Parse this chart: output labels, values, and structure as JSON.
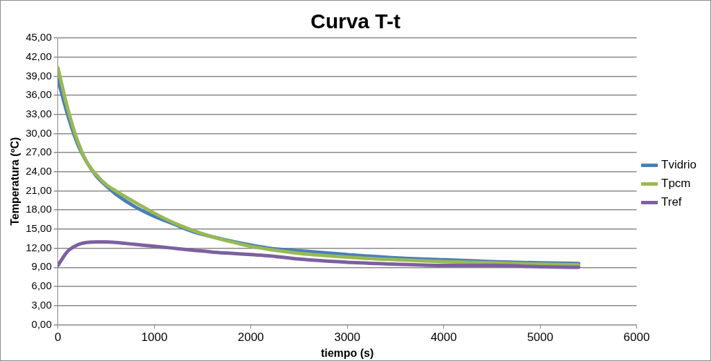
{
  "chart_data": {
    "type": "line",
    "title": "Curva T-t",
    "xlabel": "tiempo (s)",
    "ylabel": "Temperatura (ºC)",
    "x": [
      0,
      100,
      200,
      300,
      400,
      500,
      600,
      800,
      1000,
      1200,
      1400,
      1600,
      1800,
      2000,
      2200,
      2500,
      3000,
      3500,
      4000,
      4500,
      5000,
      5400
    ],
    "series": [
      {
        "name": "Tvidrio",
        "color": "#4a7ebb",
        "values": [
          38.5,
          33,
          28.5,
          25.5,
          23.3,
          21.8,
          20.5,
          18.5,
          17,
          15.8,
          14.6,
          13.8,
          13.1,
          12.5,
          12,
          11.6,
          11,
          10.5,
          10.2,
          9.9,
          9.7,
          9.6
        ]
      },
      {
        "name": "Tpcm",
        "color": "#98b954",
        "values": [
          40.3,
          34,
          29,
          25.5,
          23.5,
          22,
          21,
          19.2,
          17.5,
          16,
          14.8,
          13.8,
          13,
          12.3,
          11.8,
          11.2,
          10.6,
          10.2,
          9.9,
          9.7,
          9.5,
          9.4
        ]
      },
      {
        "name": "Tref",
        "color": "#7d60a0",
        "values": [
          9.3,
          11.5,
          12.5,
          12.9,
          13,
          13,
          12.9,
          12.6,
          12.3,
          12,
          11.7,
          11.4,
          11.2,
          11,
          10.8,
          10.3,
          9.8,
          9.5,
          9.3,
          9.3,
          9.1,
          9
        ]
      }
    ],
    "xlim": [
      0,
      6000
    ],
    "xticks": [
      0,
      1000,
      2000,
      3000,
      4000,
      5000,
      6000
    ],
    "ylim": [
      0,
      45
    ],
    "yticks": [
      {
        "value": 0,
        "label": "0,00"
      },
      {
        "value": 3,
        "label": "3,00"
      },
      {
        "value": 6,
        "label": "6,00"
      },
      {
        "value": 9,
        "label": "9,00"
      },
      {
        "value": 12,
        "label": "12,00"
      },
      {
        "value": 15,
        "label": "15,00"
      },
      {
        "value": 18,
        "label": "18,00"
      },
      {
        "value": 21,
        "label": "21,00"
      },
      {
        "value": 24,
        "label": "24,00"
      },
      {
        "value": 27,
        "label": "27,00"
      },
      {
        "value": 30,
        "label": "30,00"
      },
      {
        "value": 33,
        "label": "33,00"
      },
      {
        "value": 36,
        "label": "36,00"
      },
      {
        "value": 39,
        "label": "39,00"
      },
      {
        "value": 42,
        "label": "42,00"
      },
      {
        "value": 45,
        "label": "45,00"
      }
    ],
    "grid": "y",
    "legend": "right",
    "marker": "none",
    "line_style": "solid"
  }
}
